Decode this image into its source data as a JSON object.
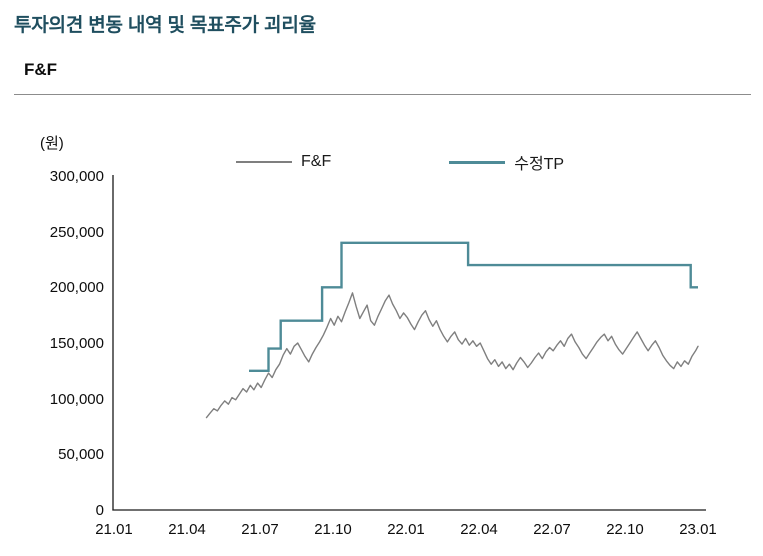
{
  "page": {
    "title": "투자의견 변동 내역 및 목표주가 괴리율",
    "subtitle": "F&F"
  },
  "chart_data": {
    "type": "line",
    "title": "F&F",
    "ylabel": "(원)",
    "ylim": [
      0,
      300000
    ],
    "yticks": [
      "300,000",
      "250,000",
      "200,000",
      "150,000",
      "100,000",
      "50,000",
      "0"
    ],
    "xticks": [
      "21.01",
      "21.04",
      "21.07",
      "21.10",
      "22.01",
      "22.04",
      "22.07",
      "22.10",
      "23.01"
    ],
    "x_axis_months_range": [
      0,
      24
    ],
    "grid": false,
    "legend_position": "top-center",
    "colors": {
      "price_line": "#7f7f7f",
      "target_line": "#4e8b97",
      "title": "#1f4e5f",
      "axis": "#1a1a1a"
    },
    "series": [
      {
        "name": "F&F",
        "type": "line",
        "color": "#7f7f7f",
        "points": [
          [
            3.8,
            83000
          ],
          [
            3.95,
            87000
          ],
          [
            4.1,
            91000
          ],
          [
            4.25,
            89000
          ],
          [
            4.4,
            94000
          ],
          [
            4.55,
            98000
          ],
          [
            4.7,
            95000
          ],
          [
            4.85,
            101000
          ],
          [
            5.0,
            99000
          ],
          [
            5.15,
            104000
          ],
          [
            5.3,
            109000
          ],
          [
            5.45,
            106000
          ],
          [
            5.6,
            112000
          ],
          [
            5.75,
            108000
          ],
          [
            5.9,
            114000
          ],
          [
            6.05,
            110000
          ],
          [
            6.2,
            117000
          ],
          [
            6.35,
            123000
          ],
          [
            6.5,
            119000
          ],
          [
            6.65,
            126000
          ],
          [
            6.8,
            131000
          ],
          [
            6.95,
            139000
          ],
          [
            7.1,
            145000
          ],
          [
            7.25,
            140000
          ],
          [
            7.4,
            147000
          ],
          [
            7.55,
            150000
          ],
          [
            7.7,
            144000
          ],
          [
            7.85,
            138000
          ],
          [
            8.0,
            133000
          ],
          [
            8.15,
            140000
          ],
          [
            8.3,
            146000
          ],
          [
            8.45,
            151000
          ],
          [
            8.6,
            157000
          ],
          [
            8.75,
            164000
          ],
          [
            8.9,
            172000
          ],
          [
            9.05,
            166000
          ],
          [
            9.2,
            174000
          ],
          [
            9.35,
            169000
          ],
          [
            9.5,
            178000
          ],
          [
            9.65,
            186000
          ],
          [
            9.8,
            195000
          ],
          [
            9.95,
            183000
          ],
          [
            10.1,
            172000
          ],
          [
            10.25,
            178000
          ],
          [
            10.4,
            184000
          ],
          [
            10.55,
            170000
          ],
          [
            10.7,
            166000
          ],
          [
            10.85,
            174000
          ],
          [
            11.0,
            181000
          ],
          [
            11.15,
            188000
          ],
          [
            11.3,
            193000
          ],
          [
            11.45,
            185000
          ],
          [
            11.6,
            179000
          ],
          [
            11.75,
            172000
          ],
          [
            11.9,
            177000
          ],
          [
            12.05,
            173000
          ],
          [
            12.2,
            167000
          ],
          [
            12.35,
            162000
          ],
          [
            12.5,
            169000
          ],
          [
            12.65,
            175000
          ],
          [
            12.8,
            179000
          ],
          [
            12.95,
            171000
          ],
          [
            13.1,
            165000
          ],
          [
            13.25,
            170000
          ],
          [
            13.4,
            162000
          ],
          [
            13.55,
            156000
          ],
          [
            13.7,
            151000
          ],
          [
            13.85,
            156000
          ],
          [
            14.0,
            160000
          ],
          [
            14.15,
            153000
          ],
          [
            14.3,
            149000
          ],
          [
            14.45,
            154000
          ],
          [
            14.6,
            148000
          ],
          [
            14.75,
            152000
          ],
          [
            14.9,
            147000
          ],
          [
            15.05,
            150000
          ],
          [
            15.2,
            143000
          ],
          [
            15.35,
            136000
          ],
          [
            15.5,
            131000
          ],
          [
            15.65,
            135000
          ],
          [
            15.8,
            129000
          ],
          [
            15.95,
            133000
          ],
          [
            16.1,
            127000
          ],
          [
            16.25,
            131000
          ],
          [
            16.4,
            126000
          ],
          [
            16.55,
            132000
          ],
          [
            16.7,
            137000
          ],
          [
            16.85,
            133000
          ],
          [
            17.0,
            128000
          ],
          [
            17.15,
            132000
          ],
          [
            17.3,
            137000
          ],
          [
            17.45,
            141000
          ],
          [
            17.6,
            136000
          ],
          [
            17.75,
            142000
          ],
          [
            17.9,
            146000
          ],
          [
            18.05,
            143000
          ],
          [
            18.2,
            148000
          ],
          [
            18.35,
            152000
          ],
          [
            18.5,
            147000
          ],
          [
            18.65,
            154000
          ],
          [
            18.8,
            158000
          ],
          [
            18.95,
            151000
          ],
          [
            19.1,
            146000
          ],
          [
            19.25,
            140000
          ],
          [
            19.4,
            136000
          ],
          [
            19.55,
            141000
          ],
          [
            19.7,
            146000
          ],
          [
            19.85,
            151000
          ],
          [
            20.0,
            155000
          ],
          [
            20.15,
            158000
          ],
          [
            20.3,
            152000
          ],
          [
            20.45,
            156000
          ],
          [
            20.6,
            149000
          ],
          [
            20.75,
            144000
          ],
          [
            20.9,
            140000
          ],
          [
            21.05,
            145000
          ],
          [
            21.2,
            150000
          ],
          [
            21.35,
            155000
          ],
          [
            21.5,
            160000
          ],
          [
            21.65,
            154000
          ],
          [
            21.8,
            148000
          ],
          [
            21.95,
            143000
          ],
          [
            22.1,
            148000
          ],
          [
            22.25,
            152000
          ],
          [
            22.4,
            146000
          ],
          [
            22.55,
            139000
          ],
          [
            22.7,
            134000
          ],
          [
            22.85,
            130000
          ],
          [
            23.0,
            127000
          ],
          [
            23.15,
            133000
          ],
          [
            23.3,
            129000
          ],
          [
            23.45,
            134000
          ],
          [
            23.6,
            131000
          ],
          [
            23.75,
            138000
          ],
          [
            23.9,
            143000
          ],
          [
            24.0,
            147000
          ]
        ]
      },
      {
        "name": "수정TP",
        "type": "step",
        "color": "#4e8b97",
        "steps": [
          {
            "from": 5.55,
            "to": 6.35,
            "value": 125000
          },
          {
            "from": 6.35,
            "to": 6.85,
            "value": 145000
          },
          {
            "from": 6.85,
            "to": 8.55,
            "value": 170000
          },
          {
            "from": 8.55,
            "to": 9.35,
            "value": 200000
          },
          {
            "from": 9.35,
            "to": 14.55,
            "value": 240000
          },
          {
            "from": 14.55,
            "to": 23.7,
            "value": 220000
          },
          {
            "from": 23.7,
            "to": 24.0,
            "value": 200000
          }
        ]
      }
    ]
  }
}
